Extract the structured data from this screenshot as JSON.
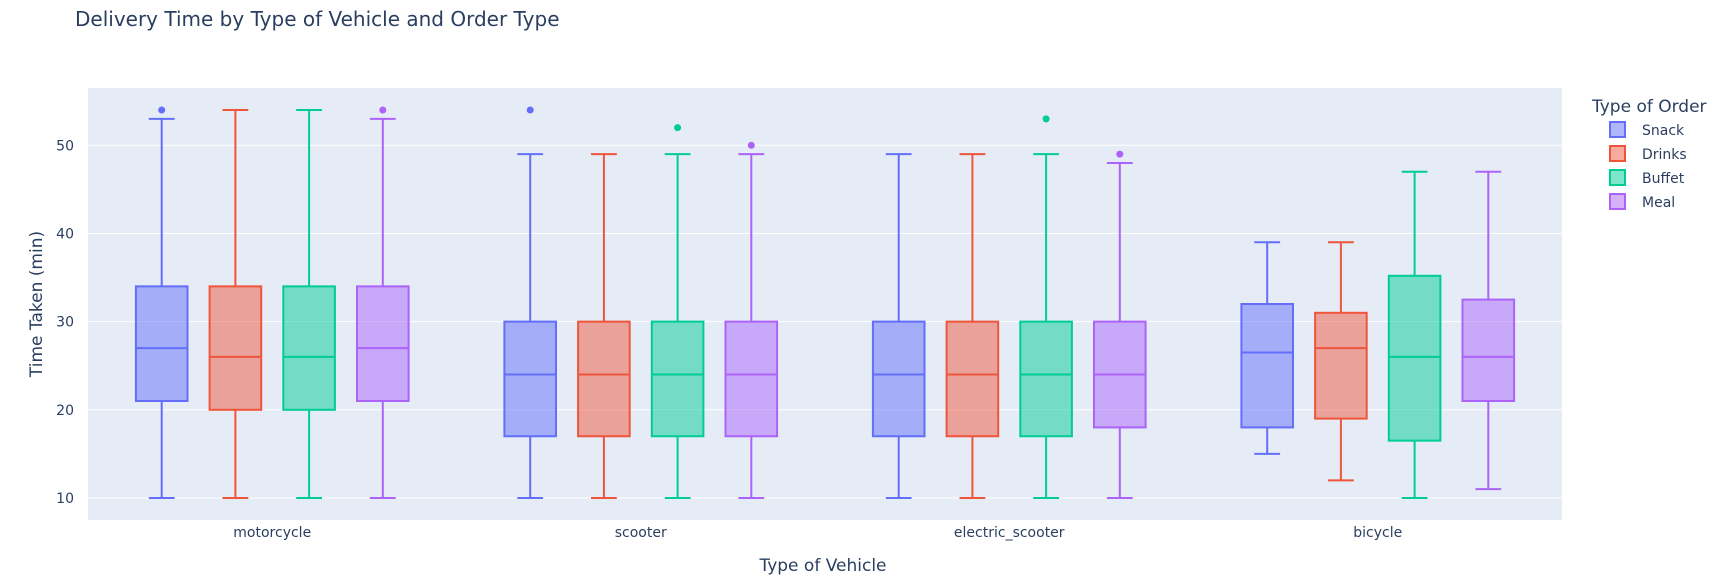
{
  "chart_data": {
    "type": "box",
    "title": "Delivery Time by Type of Vehicle and Order Type",
    "xlabel": "Type of Vehicle",
    "ylabel": "Time Taken (min)",
    "ylim": [
      7.5,
      56.5
    ],
    "yticks": [
      10,
      20,
      30,
      40,
      50
    ],
    "grid": true,
    "legend_title": "Type of Order",
    "legend_position": "top-right",
    "background": "#e5ecf6",
    "categories": [
      "motorcycle",
      "scooter",
      "electric_scooter",
      "bicycle"
    ],
    "series": [
      {
        "name": "Snack",
        "color": "#636efa",
        "boxes": [
          {
            "category": "motorcycle",
            "min": 10,
            "q1": 21,
            "median": 27,
            "q3": 34,
            "max": 53,
            "outliers": [
              54
            ]
          },
          {
            "category": "scooter",
            "min": 10,
            "q1": 17,
            "median": 24,
            "q3": 30,
            "max": 49,
            "outliers": [
              54
            ]
          },
          {
            "category": "electric_scooter",
            "min": 10,
            "q1": 17,
            "median": 24,
            "q3": 30,
            "max": 49,
            "outliers": []
          },
          {
            "category": "bicycle",
            "min": 15,
            "q1": 18,
            "median": 26.5,
            "q3": 32,
            "max": 39,
            "outliers": []
          }
        ]
      },
      {
        "name": "Drinks",
        "color": "#ef553b",
        "boxes": [
          {
            "category": "motorcycle",
            "min": 10,
            "q1": 20,
            "median": 26,
            "q3": 34,
            "max": 54,
            "outliers": []
          },
          {
            "category": "scooter",
            "min": 10,
            "q1": 17,
            "median": 24,
            "q3": 30,
            "max": 49,
            "outliers": []
          },
          {
            "category": "electric_scooter",
            "min": 10,
            "q1": 17,
            "median": 24,
            "q3": 30,
            "max": 49,
            "outliers": []
          },
          {
            "category": "bicycle",
            "min": 12,
            "q1": 19,
            "median": 27,
            "q3": 31,
            "max": 39,
            "outliers": []
          }
        ]
      },
      {
        "name": "Buffet",
        "color": "#00cc96",
        "boxes": [
          {
            "category": "motorcycle",
            "min": 10,
            "q1": 20,
            "median": 26,
            "q3": 34,
            "max": 54,
            "outliers": []
          },
          {
            "category": "scooter",
            "min": 10,
            "q1": 17,
            "median": 24,
            "q3": 30,
            "max": 49,
            "outliers": [
              52
            ]
          },
          {
            "category": "electric_scooter",
            "min": 10,
            "q1": 17,
            "median": 24,
            "q3": 30,
            "max": 49,
            "outliers": [
              53
            ]
          },
          {
            "category": "bicycle",
            "min": 10,
            "q1": 16.5,
            "median": 26,
            "q3": 35.2,
            "max": 47,
            "outliers": []
          }
        ]
      },
      {
        "name": "Meal",
        "color": "#ab63fa",
        "boxes": [
          {
            "category": "motorcycle",
            "min": 10,
            "q1": 21,
            "median": 27,
            "q3": 34,
            "max": 53,
            "outliers": [
              54
            ]
          },
          {
            "category": "scooter",
            "min": 10,
            "q1": 17,
            "median": 24,
            "q3": 30,
            "max": 49,
            "outliers": [
              50
            ]
          },
          {
            "category": "electric_scooter",
            "min": 10,
            "q1": 18,
            "median": 24,
            "q3": 30,
            "max": 48,
            "outliers": [
              49
            ]
          },
          {
            "category": "bicycle",
            "min": 11,
            "q1": 21,
            "median": 26,
            "q3": 32.5,
            "max": 47,
            "outliers": []
          }
        ]
      }
    ]
  }
}
